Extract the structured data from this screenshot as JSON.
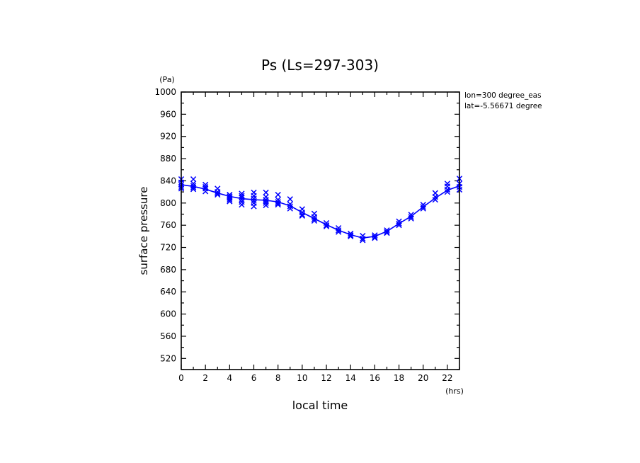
{
  "chart_data": {
    "type": "line",
    "title": "Ps (Ls=297-303)",
    "xlabel": "local time",
    "ylabel": "surface pressure",
    "x_unit": "(hrs)",
    "y_unit": "(Pa)",
    "xlim": [
      0,
      23
    ],
    "ylim": [
      500,
      1000
    ],
    "x_ticks": [
      "0",
      "2",
      "4",
      "6",
      "8",
      "10",
      "12",
      "14",
      "16",
      "18",
      "20",
      "22"
    ],
    "y_ticks": [
      "520",
      "560",
      "600",
      "640",
      "680",
      "720",
      "760",
      "800",
      "840",
      "880",
      "920",
      "960",
      "1000"
    ],
    "grid": false,
    "annotations": [
      "lon=300 degree_eas",
      "lat=-5.56671 degree"
    ],
    "series": [
      {
        "color": "#0000ff",
        "style": "line",
        "x": [
          0,
          1,
          2,
          3,
          4,
          5,
          6,
          7,
          8,
          9,
          10,
          11,
          12,
          13,
          14,
          15,
          16,
          17,
          18,
          19,
          20,
          21,
          22,
          23
        ],
        "y": [
          833,
          830,
          825,
          818,
          812,
          808,
          806,
          805,
          802,
          795,
          783,
          772,
          761,
          751,
          743,
          737,
          740,
          749,
          763,
          776,
          793,
          809,
          823,
          831
        ]
      },
      {
        "color": "#0000ff",
        "style": "x-markers",
        "x": [
          0,
          0,
          0,
          0,
          0,
          1,
          1,
          1,
          1,
          1,
          2,
          2,
          2,
          2,
          3,
          3,
          3,
          3,
          4,
          4,
          4,
          4,
          4,
          5,
          5,
          5,
          5,
          5,
          5,
          6,
          6,
          6,
          6,
          6,
          6,
          7,
          7,
          7,
          7,
          7,
          7,
          8,
          8,
          8,
          8,
          8,
          9,
          9,
          9,
          9,
          10,
          10,
          10,
          10,
          11,
          11,
          11,
          11,
          12,
          12,
          12,
          13,
          13,
          13,
          14,
          14,
          14,
          15,
          15,
          15,
          16,
          16,
          16,
          17,
          17,
          17,
          18,
          18,
          18,
          19,
          19,
          19,
          20,
          20,
          20,
          21,
          21,
          21,
          22,
          22,
          22,
          22,
          23,
          23,
          23,
          23
        ],
        "y": [
          843,
          837,
          833,
          829,
          826,
          843,
          835,
          831,
          828,
          825,
          833,
          829,
          826,
          821,
          826,
          820,
          817,
          815,
          815,
          812,
          809,
          806,
          803,
          817,
          813,
          810,
          806,
          802,
          797,
          819,
          813,
          808,
          804,
          800,
          794,
          819,
          811,
          806,
          803,
          800,
          796,
          815,
          806,
          802,
          799,
          797,
          807,
          798,
          794,
          790,
          789,
          783,
          779,
          777,
          781,
          775,
          771,
          768,
          764,
          760,
          758,
          755,
          751,
          748,
          745,
          742,
          740,
          741,
          736,
          733,
          742,
          739,
          737,
          751,
          748,
          746,
          767,
          763,
          760,
          779,
          775,
          772,
          797,
          793,
          790,
          818,
          811,
          806,
          835,
          830,
          824,
          820,
          844,
          835,
          829,
          824
        ]
      }
    ]
  }
}
